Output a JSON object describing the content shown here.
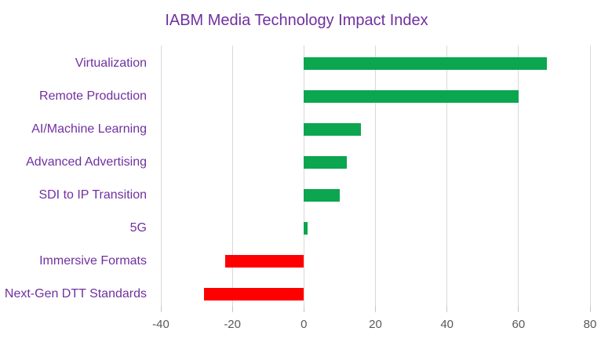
{
  "title": "IABM Media Technology Impact Index",
  "chart_data": {
    "type": "bar",
    "orientation": "horizontal",
    "title": "IABM Media Technology Impact Index",
    "categories": [
      "Virtualization",
      "Remote Production",
      "AI/Machine Learning",
      "Advanced Advertising",
      "SDI to IP Transition",
      "5G",
      "Immersive Formats",
      "Next-Gen DTT Standards"
    ],
    "values": [
      68,
      60,
      16,
      12,
      10,
      1,
      -22,
      -28
    ],
    "xlabel": "",
    "ylabel": "",
    "xlim": [
      -40,
      80
    ],
    "x_ticks": [
      -40,
      -20,
      0,
      20,
      40,
      60,
      80
    ],
    "grid": true,
    "legend": false,
    "colors": {
      "positive_bar": "#0ba64f",
      "negative_bar": "#fe0000",
      "title_text": "#7030a0",
      "category_text": "#7030a0",
      "tick_text": "#595959",
      "gridline": "#d9d9d9",
      "tick_mark": "#c6c6c6",
      "background": "#ffffff"
    }
  }
}
